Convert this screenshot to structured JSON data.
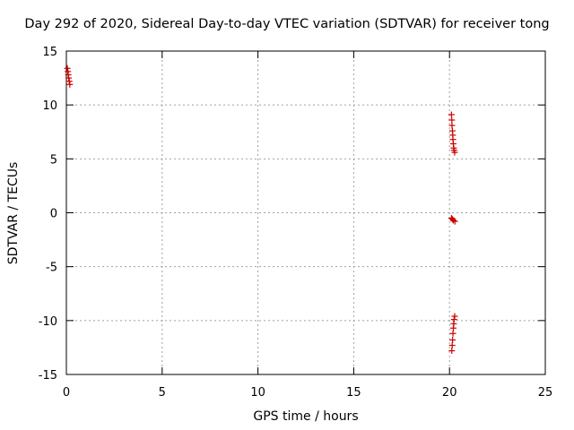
{
  "chart_data": {
    "type": "scatter",
    "title": "Day 292 of 2020, Sidereal Day-to-day VTEC variation (SDTVAR) for receiver tong",
    "xlabel": "GPS time / hours",
    "ylabel": "SDTVAR / TECUs",
    "xlim": [
      0,
      25
    ],
    "ylim": [
      -15,
      15
    ],
    "xticks": [
      0,
      5,
      10,
      15,
      20,
      25
    ],
    "yticks": [
      -15,
      -10,
      -5,
      0,
      5,
      10,
      15
    ],
    "grid": true,
    "marker": "+",
    "series": [
      {
        "color": "#cc0000",
        "points": [
          [
            0.05,
            13.4
          ],
          [
            0.08,
            13.1
          ],
          [
            0.1,
            12.8
          ],
          [
            0.12,
            12.5
          ],
          [
            0.15,
            12.2
          ],
          [
            0.18,
            11.9
          ],
          [
            20.1,
            9.1
          ],
          [
            20.12,
            8.6
          ],
          [
            20.13,
            8.1
          ],
          [
            20.15,
            7.6
          ],
          [
            20.17,
            7.2
          ],
          [
            20.18,
            6.8
          ],
          [
            20.2,
            6.4
          ],
          [
            20.22,
            6.0
          ],
          [
            20.24,
            5.8
          ],
          [
            20.27,
            5.6
          ],
          [
            20.1,
            -0.5
          ],
          [
            20.15,
            -0.6
          ],
          [
            20.2,
            -0.7
          ],
          [
            20.28,
            -0.8
          ],
          [
            20.12,
            -12.8
          ],
          [
            20.14,
            -12.3
          ],
          [
            20.16,
            -11.8
          ],
          [
            20.18,
            -11.2
          ],
          [
            20.2,
            -10.7
          ],
          [
            20.22,
            -10.3
          ],
          [
            20.24,
            -9.9
          ],
          [
            20.27,
            -9.6
          ]
        ]
      }
    ]
  }
}
